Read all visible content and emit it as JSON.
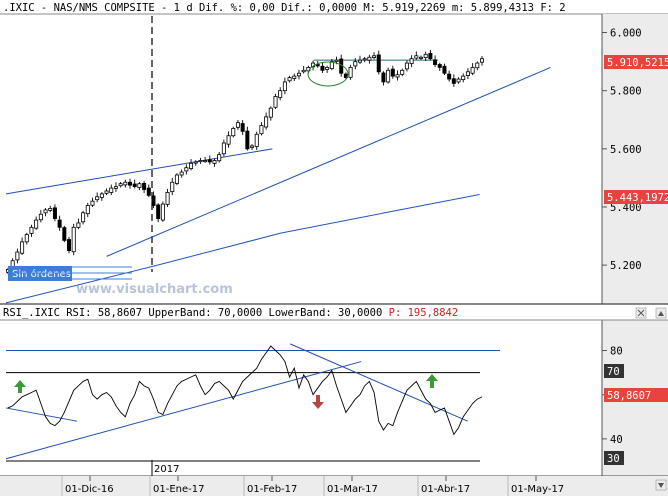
{
  "header": {
    "text": ".IXIC - NAS/NMS COMPSITE -  1 d Dif. %: 0,00 Dif.: 0,0000 M: 5.919,2269 m: 5.899,4313 F: 2"
  },
  "rsi_header": {
    "prefix": "RSI_.IXIC RSI: 58,8607 UpperBand: 70,0000 LowerBand: 30,0000 ",
    "p_label": "P: 195,8842"
  },
  "watermark": "www.visualchart.com",
  "orders_box": {
    "label": "Sin órdenes"
  },
  "year_marker": "2017",
  "x_ticks": [
    "01-Dic-16",
    "01-Ene-17",
    "01-Feb-17",
    "01-Mar-17",
    "01-Abr-17",
    "01-May-17"
  ],
  "price_axis": {
    "ticks": [
      "6.000",
      "5.800",
      "5.600",
      "5.400",
      "5.200"
    ],
    "last_price": "5.910,5215",
    "ma_value": "5.443,1972"
  },
  "rsi_axis": {
    "ticks": [
      "80",
      "60",
      "40"
    ],
    "upper_band": "70",
    "lower_band": "30",
    "current": "58,8607"
  },
  "colors": {
    "candle": "#000000",
    "trendline": "#1f4fb0",
    "moving_average": "#2255bb",
    "badge_red": "#e8433f",
    "badge_dark": "#333333",
    "arrow_up": "#3a9a3a",
    "arrow_down": "#b5473f",
    "orders_box": "#3d7dd8",
    "ellipse": "#2e7d32"
  },
  "chart_data": [
    {
      "type": "candlestick",
      "title": ".IXIC - NAS/NMS COMPSITE",
      "x_range": [
        "2016-11-04",
        "2017-05-22"
      ],
      "ylim": [
        5080,
        6050
      ],
      "y_ticks": [
        6000,
        5800,
        5600,
        5400,
        5200
      ],
      "last_price": 5910.5215,
      "moving_average": {
        "last": 5443.1972,
        "points": [
          [
            0,
            5070
          ],
          [
            0.32,
            5200
          ],
          [
            0.58,
            5310
          ],
          [
            0.8,
            5380
          ],
          [
            1,
            5443
          ]
        ]
      },
      "close_series": [
        5185,
        5215,
        5245,
        5280,
        5305,
        5330,
        5355,
        5375,
        5390,
        5395,
        5360,
        5330,
        5285,
        5250,
        5330,
        5345,
        5380,
        5405,
        5420,
        5435,
        5445,
        5455,
        5465,
        5470,
        5480,
        5485,
        5475,
        5470,
        5480,
        5460,
        5440,
        5405,
        5360,
        5410,
        5450,
        5485,
        5510,
        5520,
        5535,
        5550,
        5555,
        5560,
        5560,
        5555,
        5560,
        5580,
        5620,
        5645,
        5670,
        5690,
        5660,
        5600,
        5610,
        5650,
        5680,
        5710,
        5740,
        5780,
        5800,
        5830,
        5845,
        5850,
        5860,
        5870,
        5880,
        5895,
        5885,
        5870,
        5880,
        5900,
        5905,
        5860,
        5845,
        5880,
        5900,
        5905,
        5910,
        5915,
        5920,
        5865,
        5830,
        5870,
        5850,
        5855,
        5870,
        5895,
        5910,
        5920,
        5915,
        5925,
        5910,
        5890,
        5880,
        5860,
        5840,
        5825,
        5840,
        5850,
        5865,
        5880,
        5895,
        5910
      ],
      "trendlines": [
        {
          "from": [
            0,
            5445
          ],
          "to": [
            0.45,
            5600
          ]
        },
        {
          "from": [
            0.17,
            5230
          ],
          "to": [
            0.92,
            5880
          ]
        },
        {
          "from": [
            0.52,
            5905
          ],
          "to": [
            0.73,
            5905
          ]
        }
      ]
    },
    {
      "type": "line",
      "title": "RSI_.IXIC RSI",
      "ylim": [
        25,
        92
      ],
      "y_ticks": [
        80,
        60,
        40
      ],
      "bands": {
        "upper": 70,
        "lower": 30
      },
      "current": 58.8607,
      "values": [
        54,
        55,
        57,
        59,
        60,
        61,
        62,
        56,
        50,
        47,
        46,
        48,
        52,
        57,
        62,
        64,
        66,
        67,
        60,
        58,
        60,
        61,
        59,
        55,
        52,
        50,
        56,
        60,
        66,
        64,
        63,
        58,
        52,
        51,
        56,
        60,
        64,
        66,
        67,
        68,
        69,
        64,
        60,
        62,
        65,
        66,
        64,
        62,
        58,
        62,
        66,
        68,
        70,
        72,
        76,
        79,
        82,
        80,
        78,
        75,
        68,
        72,
        63,
        69,
        66,
        60,
        63,
        66,
        68,
        71,
        64,
        58,
        52,
        55,
        58,
        60,
        64,
        66,
        61,
        48,
        44,
        47,
        46,
        52,
        57,
        62,
        64,
        66,
        62,
        58,
        56,
        52,
        53,
        54,
        48,
        42,
        45,
        50,
        53,
        56,
        58,
        59
      ],
      "trendlines": [
        {
          "from": [
            0,
            31
          ],
          "to": [
            0.6,
            75
          ]
        },
        {
          "from": [
            0.48,
            83
          ],
          "to": [
            0.78,
            48
          ]
        },
        {
          "from": [
            0,
            54
          ],
          "to": [
            0.12,
            48
          ]
        }
      ]
    }
  ]
}
